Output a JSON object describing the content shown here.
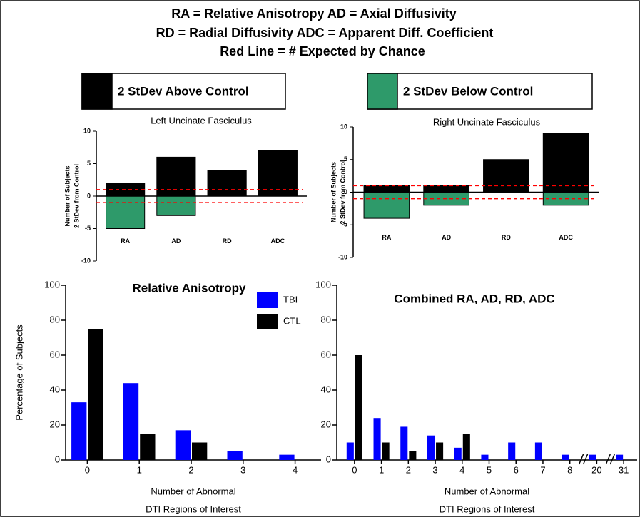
{
  "header": {
    "lines": [
      "RA = Relative Anisotropy AD = Axial Diffusivity",
      "RD = Radial Diffusivity  ADC = Apparent Diff. Coefficient",
      "Red Line = # Expected by Chance"
    ],
    "legend": [
      {
        "label": "2 StDev Above Control",
        "color": "#000000"
      },
      {
        "label": "2 StDev Below Control",
        "color": "#2e9a6a"
      }
    ]
  },
  "chart_data": [
    {
      "type": "diverging",
      "title": "Left Uncinate Fasciculus",
      "ylabel": [
        "Number of Subjects",
        "2 StDev from Control"
      ],
      "categories": [
        "RA",
        "AD",
        "RD",
        "ADC"
      ],
      "series": [
        {
          "color": "#000000",
          "values": [
            2,
            6,
            4,
            7
          ]
        },
        {
          "color": "#2e9a6a",
          "values": [
            -5,
            -3,
            0,
            0
          ]
        }
      ],
      "reference_lines": [
        1,
        -1
      ],
      "reference_color": "#ff0000",
      "ylim": [
        -10,
        10
      ],
      "yticks": [
        10,
        5,
        0,
        -5,
        -10
      ]
    },
    {
      "type": "diverging",
      "title": "Right Uncinate Fasciculus",
      "ylabel": [
        "Number of Subjects",
        "2 StDev from Control"
      ],
      "categories": [
        "RA",
        "AD",
        "RD",
        "ADC"
      ],
      "series": [
        {
          "color": "#000000",
          "values": [
            1,
            1,
            5,
            9
          ]
        },
        {
          "color": "#2e9a6a",
          "values": [
            -4,
            -2,
            0,
            -2
          ]
        }
      ],
      "reference_lines": [
        1,
        -1
      ],
      "reference_color": "#ff0000",
      "ylim": [
        -10,
        10
      ],
      "yticks": [
        10,
        5,
        0,
        -5,
        -10
      ]
    },
    {
      "type": "bar",
      "title": "Relative Anisotropy",
      "ylabel": "Percentage of Subjects",
      "xlabel": [
        "Number of Abnormal",
        "DTI Regions of Interest"
      ],
      "categories": [
        "0",
        "1",
        "2",
        "3",
        "4"
      ],
      "series": [
        {
          "name": "TBI",
          "color": "#0000ff",
          "values": [
            33,
            44,
            17,
            5,
            3
          ]
        },
        {
          "name": "CTL",
          "color": "#000000",
          "values": [
            75,
            15,
            10,
            0,
            0
          ]
        }
      ],
      "ylim": [
        0,
        100
      ],
      "yticks": [
        0,
        20,
        40,
        60,
        80,
        100
      ]
    },
    {
      "type": "bar",
      "title": "Combined RA, AD, RD, ADC",
      "xlabel": [
        "Number of Abnormal",
        "DTI Regions of Interest"
      ],
      "categories": [
        "0",
        "1",
        "2",
        "3",
        "4",
        "5",
        "6",
        "7",
        "8",
        "20",
        "31"
      ],
      "axis_breaks_after": [
        8,
        9
      ],
      "series": [
        {
          "name": "TBI",
          "color": "#0000ff",
          "values": [
            10,
            24,
            19,
            14,
            7,
            3,
            10,
            10,
            3,
            3,
            3
          ]
        },
        {
          "name": "CTL",
          "color": "#000000",
          "values": [
            60,
            10,
            5,
            10,
            15,
            0,
            0,
            0,
            0,
            0,
            0
          ]
        }
      ],
      "ylim": [
        0,
        100
      ],
      "yticks": [
        0,
        20,
        40,
        60,
        80,
        100
      ]
    }
  ]
}
